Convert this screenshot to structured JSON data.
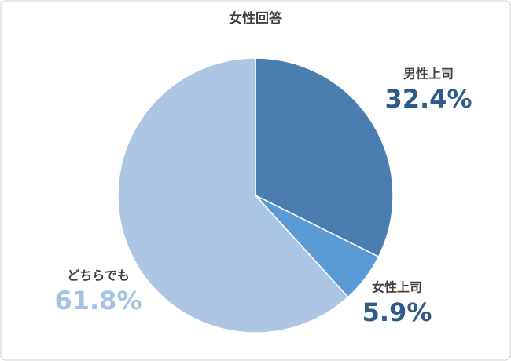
{
  "chart_data": {
    "type": "pie",
    "title": "女性回答",
    "categories": [
      "男性上司",
      "女性上司",
      "どちらでも"
    ],
    "values": [
      32.4,
      5.9,
      61.8
    ],
    "value_labels": [
      "32.4%",
      "5.9%",
      "61.8%"
    ],
    "colors": [
      "#4a7eb0",
      "#5b9bd5",
      "#adc6e4"
    ],
    "label_colors": [
      "#2e5b8a",
      "#2e5b8a",
      "#a6c2e2"
    ]
  }
}
